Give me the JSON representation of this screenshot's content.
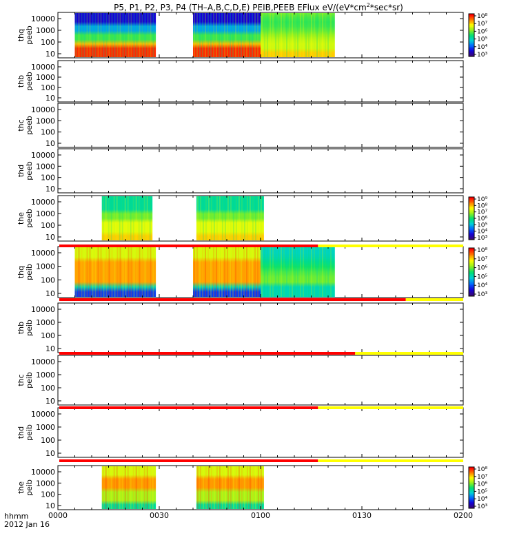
{
  "title": {
    "prefix": "P5, P1, P2, P3, P4 (TH–A,B,C,D,E) PEIB,PEEB EFlux eV/(eV*cm",
    "exp1": "2",
    "suffix": "*sec*sr)"
  },
  "footer": {
    "label1": "hhmm",
    "label2": "2012 Jan 16"
  },
  "chart_data": {
    "type": "heatmap",
    "x_axis": {
      "range": [
        "00:00",
        "02:00"
      ],
      "ticks": [
        "0000",
        "0030",
        "0100",
        "0130",
        "0200"
      ]
    },
    "y_axis": {
      "scale": "log",
      "unit": "eV",
      "ticks": [
        "10",
        "100",
        "1000",
        "10000"
      ]
    },
    "colors": {
      "spectrum": [
        "#3b0a6e",
        "#1400d8",
        "#0068ff",
        "#00d0d8",
        "#00e070",
        "#90f020",
        "#ffff00",
        "#ff8000",
        "#ff0000"
      ],
      "bar_red": "#ff0000",
      "bar_yellow": "#ffff00"
    },
    "panels": [
      {
        "label1": "thq",
        "label2": "peeb",
        "colorbar_ticks": [
          "10³",
          "10⁴",
          "10⁵",
          "10⁶",
          "10⁷",
          "10⁸"
        ],
        "blocks": [
          {
            "start": "00:05",
            "end": "00:29",
            "profile": "electron_hot"
          },
          {
            "start": "00:40",
            "end": "01:00",
            "profile": "electron_hot"
          },
          {
            "start": "01:00",
            "end": "01:22",
            "profile": "electron_mid"
          }
        ]
      },
      {
        "label1": "thb",
        "label2": "peeb",
        "colorbar_ticks": [],
        "blocks": []
      },
      {
        "label1": "thc",
        "label2": "peeb",
        "colorbar_ticks": [],
        "blocks": []
      },
      {
        "label1": "thd",
        "label2": "peeb",
        "colorbar_ticks": [],
        "blocks": []
      },
      {
        "label1": "the",
        "label2": "peeb",
        "colorbar_ticks": [
          "10³",
          "10⁴",
          "10⁵",
          "10⁶",
          "10⁷",
          "10⁸",
          "10⁹"
        ],
        "blocks": [
          {
            "start": "00:13",
            "end": "00:28",
            "profile": "electron_warm"
          },
          {
            "start": "00:41",
            "end": "01:01",
            "profile": "electron_warm"
          }
        ]
      },
      {
        "label1": "thq",
        "label2": "peib",
        "colorbar_ticks": [
          "10³",
          "10⁴",
          "10⁵",
          "10⁶",
          "10⁷",
          "10⁸"
        ],
        "blocks": [
          {
            "start": "00:05",
            "end": "00:29",
            "profile": "ion_hot"
          },
          {
            "start": "00:40",
            "end": "01:00",
            "profile": "ion_hot"
          },
          {
            "start": "01:00",
            "end": "01:22",
            "profile": "ion_mid"
          }
        ]
      },
      {
        "label1": "thb",
        "label2": "peib",
        "colorbar_ticks": [],
        "blocks": []
      },
      {
        "label1": "thc",
        "label2": "peib",
        "colorbar_ticks": [],
        "blocks": []
      },
      {
        "label1": "thd",
        "label2": "peib",
        "colorbar_ticks": [],
        "blocks": []
      },
      {
        "label1": "the",
        "label2": "peib",
        "colorbar_ticks": [
          "10³",
          "10⁴",
          "10⁵",
          "10⁶",
          "10⁷",
          "10⁸"
        ],
        "blocks": [
          {
            "start": "00:13",
            "end": "00:29",
            "profile": "ion_warm"
          },
          {
            "start": "00:41",
            "end": "01:01",
            "profile": "ion_warm"
          }
        ]
      }
    ],
    "mode_bars": [
      {
        "after_panel": 5,
        "red_end": "01:17",
        "yellow_end": "02:00"
      },
      {
        "after_panel": 6,
        "red_end": "01:43",
        "yellow_end": "02:00"
      },
      {
        "after_panel": 7,
        "red_end": "01:28",
        "yellow_end": "02:00"
      },
      {
        "after_panel": 8,
        "red_end": "01:17",
        "yellow_end": "02:00"
      },
      {
        "after_panel": 9,
        "red_end": "01:17",
        "yellow_end": "02:00"
      }
    ]
  }
}
